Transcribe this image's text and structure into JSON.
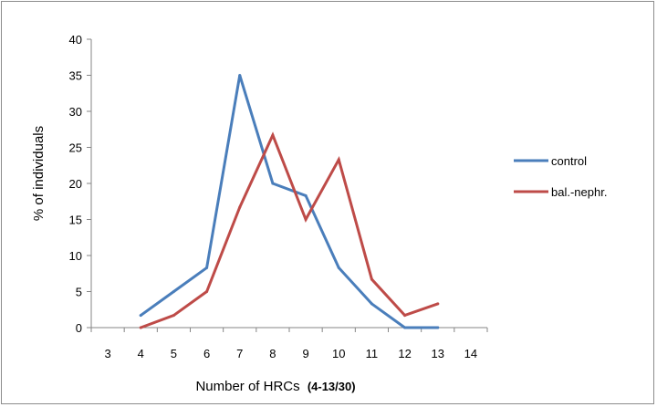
{
  "chart_data": {
    "type": "line",
    "title": "",
    "xlabel": "Number of HRCs",
    "xlabel_suffix": "(4-13/30)",
    "ylabel": "% of individuals",
    "categories": [
      "3",
      "4",
      "5",
      "6",
      "7",
      "8",
      "9",
      "10",
      "11",
      "12",
      "13",
      "14"
    ],
    "ylim": [
      0,
      40
    ],
    "yticks": [
      0,
      5,
      10,
      15,
      20,
      25,
      30,
      35,
      40
    ],
    "grid": false,
    "legend_position": "right",
    "series": [
      {
        "name": "control",
        "color": "#4a7ebb",
        "values": [
          null,
          1.7,
          5.0,
          8.3,
          35.0,
          20.0,
          18.3,
          8.3,
          3.3,
          0.0,
          0.0,
          null
        ]
      },
      {
        "name": "bal.-nephr.",
        "color": "#be4b48",
        "values": [
          null,
          0.0,
          1.7,
          5.0,
          16.7,
          26.7,
          15.0,
          23.3,
          6.7,
          1.7,
          3.3,
          null
        ]
      }
    ]
  }
}
